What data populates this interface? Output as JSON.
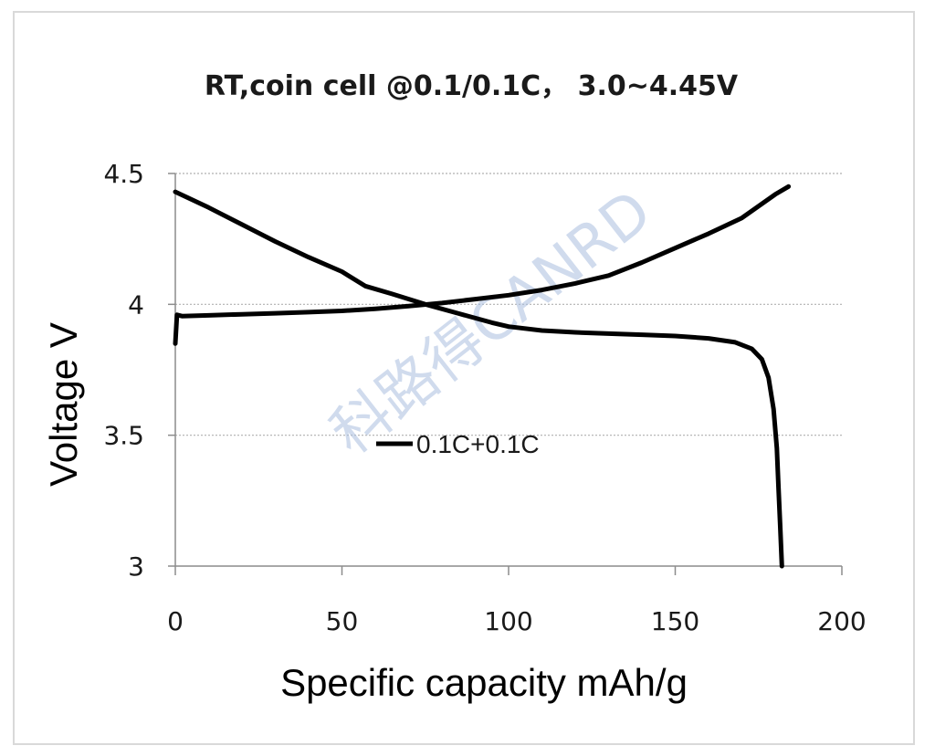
{
  "chart_data": {
    "type": "line",
    "title": "RT,coin cell @0.1/0.1C， 3.0~4.45V",
    "xlabel": "Specific capacity mAh/g",
    "ylabel": "Voltage V",
    "xlim": [
      0,
      200
    ],
    "ylim": [
      3,
      4.5
    ],
    "x_ticks": [
      "0",
      "50",
      "100",
      "150",
      "200"
    ],
    "y_ticks": [
      "3",
      "3.5",
      "4",
      "4.5"
    ],
    "x_tick_values": [
      0,
      50,
      100,
      150,
      200
    ],
    "y_tick_values": [
      3,
      3.5,
      4,
      4.5
    ],
    "grid": "horizontal dotted",
    "legend_position": "center-left",
    "series": [
      {
        "name": "0.1C+0.1C",
        "color": "#000000",
        "segments": [
          {
            "role": "charge",
            "points": [
              [
                0,
                3.85
              ],
              [
                0.5,
                3.96
              ],
              [
                2,
                3.955
              ],
              [
                10,
                3.958
              ],
              [
                20,
                3.962
              ],
              [
                30,
                3.966
              ],
              [
                40,
                3.97
              ],
              [
                50,
                3.975
              ],
              [
                60,
                3.983
              ],
              [
                70,
                3.993
              ],
              [
                80,
                4.005
              ],
              [
                90,
                4.02
              ],
              [
                100,
                4.035
              ],
              [
                110,
                4.055
              ],
              [
                120,
                4.08
              ],
              [
                130,
                4.11
              ],
              [
                140,
                4.16
              ],
              [
                150,
                4.215
              ],
              [
                160,
                4.27
              ],
              [
                170,
                4.33
              ],
              [
                180,
                4.42
              ],
              [
                184,
                4.45
              ]
            ]
          },
          {
            "role": "discharge",
            "points": [
              [
                0,
                4.43
              ],
              [
                10,
                4.37
              ],
              [
                20,
                4.305
              ],
              [
                30,
                4.24
              ],
              [
                40,
                4.18
              ],
              [
                50,
                4.125
              ],
              [
                57,
                4.07
              ],
              [
                65,
                4.04
              ],
              [
                75,
                4.0
              ],
              [
                85,
                3.965
              ],
              [
                95,
                3.93
              ],
              [
                100,
                3.915
              ],
              [
                110,
                3.9
              ],
              [
                120,
                3.893
              ],
              [
                130,
                3.888
              ],
              [
                140,
                3.884
              ],
              [
                150,
                3.879
              ],
              [
                160,
                3.87
              ],
              [
                168,
                3.855
              ],
              [
                173,
                3.83
              ],
              [
                176,
                3.79
              ],
              [
                178,
                3.72
              ],
              [
                179.5,
                3.6
              ],
              [
                180.5,
                3.45
              ],
              [
                181,
                3.3
              ],
              [
                181.5,
                3.15
              ],
              [
                182,
                3.0
              ]
            ]
          }
        ]
      }
    ],
    "watermark": "科路得CANRD"
  }
}
